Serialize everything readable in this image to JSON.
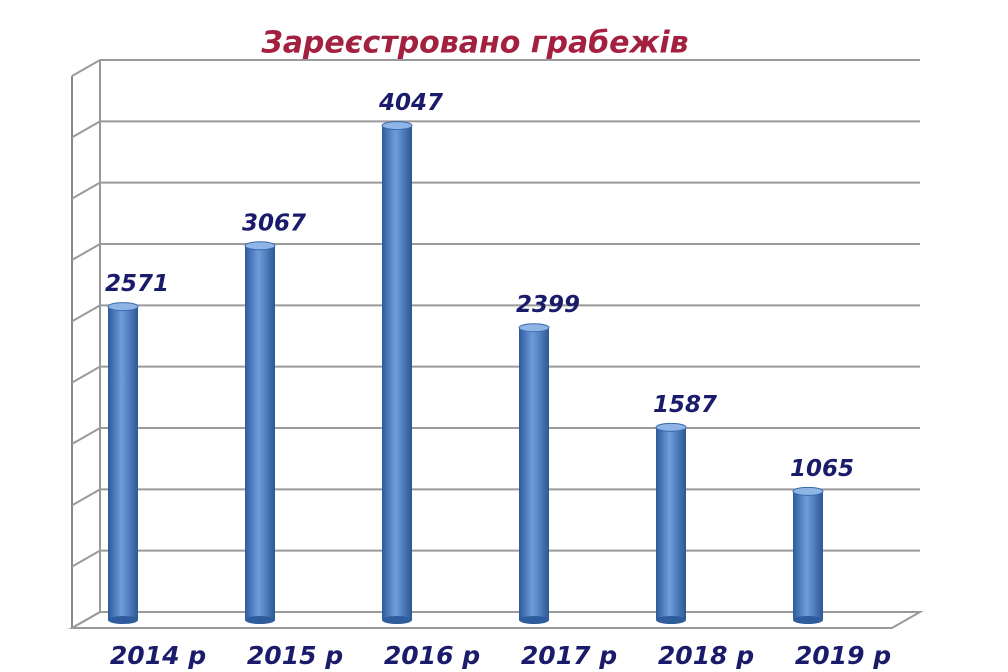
{
  "chart_data": {
    "type": "bar",
    "title": "Зареєстровано грабежів",
    "categories": [
      "2014 р",
      "2015 р",
      "2016 р",
      "2017 р",
      "2018 р",
      "2019 р"
    ],
    "values": [
      2571,
      3067,
      4047,
      2399,
      1587,
      1065
    ],
    "color": "#3f72b8",
    "ylim": [
      0,
      4500
    ],
    "yticks": [
      0,
      500,
      1000,
      1500,
      2000,
      2500,
      3000,
      3500,
      4000,
      4500
    ],
    "grid": true
  }
}
